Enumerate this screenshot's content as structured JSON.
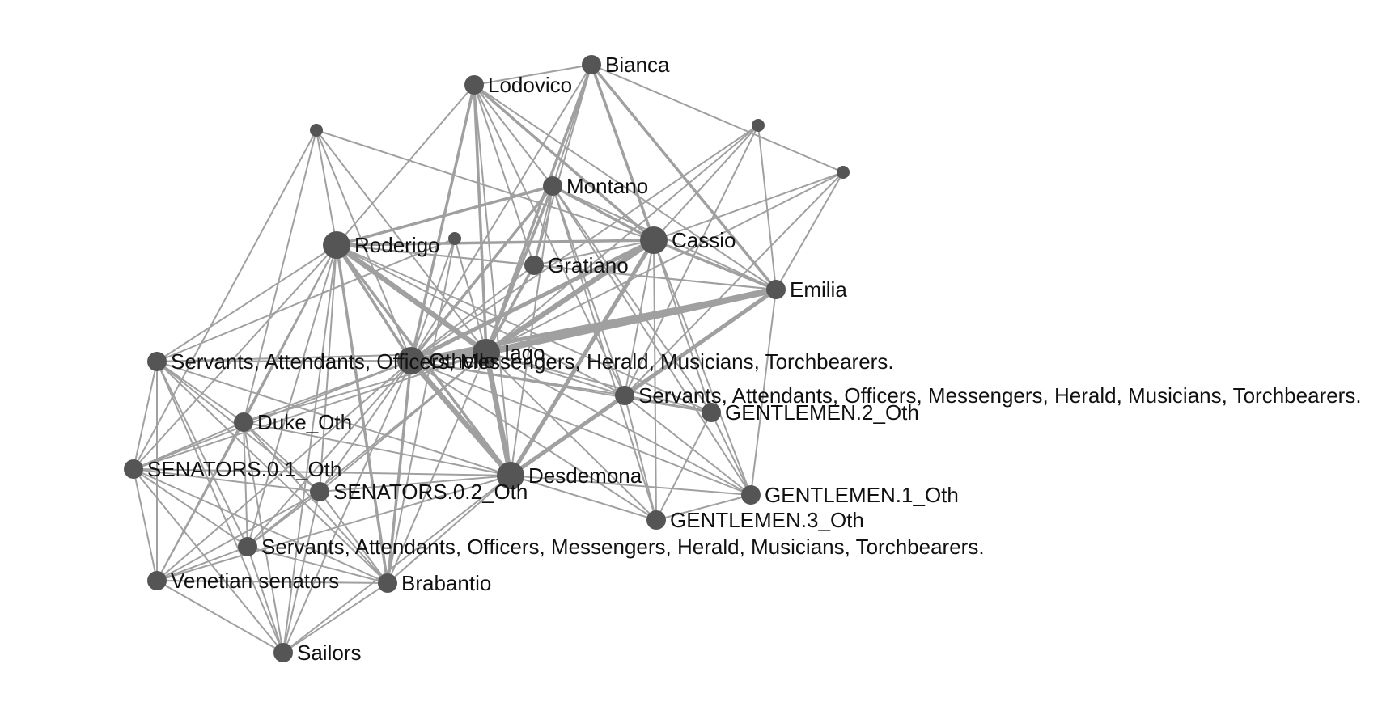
{
  "colors": {
    "node": "#555555",
    "edge": "#a0a0a0",
    "label": "#111111"
  },
  "nodes": [
    {
      "id": "bianca",
      "label": "Bianca",
      "degree": "minor"
    },
    {
      "id": "lodovico",
      "label": "Lodovico",
      "degree": "minor"
    },
    {
      "id": "unlabeled_1",
      "label": "",
      "degree": "tiny"
    },
    {
      "id": "unlabeled_2",
      "label": "",
      "degree": "tiny"
    },
    {
      "id": "unlabeled_3",
      "label": "",
      "degree": "tiny"
    },
    {
      "id": "unlabeled_4",
      "label": "",
      "degree": "tiny"
    },
    {
      "id": "montano",
      "label": "Montano",
      "degree": "minor"
    },
    {
      "id": "roderigo",
      "label": "Roderigo",
      "degree": "major"
    },
    {
      "id": "cassio",
      "label": "Cassio",
      "degree": "major"
    },
    {
      "id": "gratiano",
      "label": "Gratiano",
      "degree": "minor"
    },
    {
      "id": "emilia",
      "label": "Emilia",
      "degree": "minor"
    },
    {
      "id": "servants_a",
      "label": "Servants, Attendants, Officers, Messengers, Herald, Musicians, Torchbearers.",
      "degree": "minor"
    },
    {
      "id": "othello",
      "label": "Othello",
      "degree": "major"
    },
    {
      "id": "iago",
      "label": "Iago",
      "degree": "major"
    },
    {
      "id": "servants_b",
      "label": "Servants, Attendants, Officers, Messengers, Herald, Musicians, Torchbearers.",
      "degree": "minor"
    },
    {
      "id": "gentlemen2",
      "label": "GENTLEMEN.2_Oth",
      "degree": "minor"
    },
    {
      "id": "duke",
      "label": "Duke_Oth",
      "degree": "minor"
    },
    {
      "id": "senators01",
      "label": "SENATORS.0.1_Oth",
      "degree": "minor"
    },
    {
      "id": "desdemona",
      "label": "Desdemona",
      "degree": "major"
    },
    {
      "id": "senators02",
      "label": "SENATORS.0.2_Oth",
      "degree": "minor"
    },
    {
      "id": "gentlemen1",
      "label": "GENTLEMEN.1_Oth",
      "degree": "minor"
    },
    {
      "id": "gentlemen3",
      "label": "GENTLEMEN.3_Oth",
      "degree": "minor"
    },
    {
      "id": "servants_c",
      "label": "Servants, Attendants, Officers, Messengers, Herald, Musicians, Torchbearers.",
      "degree": "minor"
    },
    {
      "id": "venetian",
      "label": "Venetian senators",
      "degree": "minor"
    },
    {
      "id": "brabantio",
      "label": "Brabantio",
      "degree": "minor"
    },
    {
      "id": "sailors",
      "label": "Sailors",
      "degree": "minor"
    }
  ],
  "edges": [
    {
      "source": "othello",
      "target": "iago",
      "weight": 5
    },
    {
      "source": "othello",
      "target": "desdemona",
      "weight": 4
    },
    {
      "source": "othello",
      "target": "cassio",
      "weight": 3
    },
    {
      "source": "othello",
      "target": "roderigo",
      "weight": 2
    },
    {
      "source": "othello",
      "target": "emilia",
      "weight": 3
    },
    {
      "source": "othello",
      "target": "montano",
      "weight": 2
    },
    {
      "source": "othello",
      "target": "lodovico",
      "weight": 2
    },
    {
      "source": "othello",
      "target": "bianca",
      "weight": 1
    },
    {
      "source": "othello",
      "target": "gratiano",
      "weight": 1
    },
    {
      "source": "othello",
      "target": "brabantio",
      "weight": 2
    },
    {
      "source": "othello",
      "target": "duke",
      "weight": 1
    },
    {
      "source": "othello",
      "target": "servants_a",
      "weight": 1
    },
    {
      "source": "othello",
      "target": "servants_b",
      "weight": 1
    },
    {
      "source": "othello",
      "target": "servants_c",
      "weight": 1
    },
    {
      "source": "othello",
      "target": "senators01",
      "weight": 1
    },
    {
      "source": "othello",
      "target": "senators02",
      "weight": 1
    },
    {
      "source": "othello",
      "target": "venetian",
      "weight": 1
    },
    {
      "source": "othello",
      "target": "sailors",
      "weight": 1
    },
    {
      "source": "othello",
      "target": "gentlemen1",
      "weight": 1
    },
    {
      "source": "othello",
      "target": "gentlemen2",
      "weight": 1
    },
    {
      "source": "othello",
      "target": "gentlemen3",
      "weight": 1
    },
    {
      "source": "othello",
      "target": "unlabeled_1",
      "weight": 1
    },
    {
      "source": "othello",
      "target": "unlabeled_2",
      "weight": 1
    },
    {
      "source": "othello",
      "target": "unlabeled_3",
      "weight": 1
    },
    {
      "source": "iago",
      "target": "roderigo",
      "weight": 4
    },
    {
      "source": "iago",
      "target": "cassio",
      "weight": 4
    },
    {
      "source": "iago",
      "target": "emilia",
      "weight": 5
    },
    {
      "source": "iago",
      "target": "desdemona",
      "weight": 4
    },
    {
      "source": "iago",
      "target": "montano",
      "weight": 2
    },
    {
      "source": "iago",
      "target": "lodovico",
      "weight": 2
    },
    {
      "source": "iago",
      "target": "bianca",
      "weight": 2
    },
    {
      "source": "iago",
      "target": "gratiano",
      "weight": 2
    },
    {
      "source": "iago",
      "target": "brabantio",
      "weight": 1
    },
    {
      "source": "iago",
      "target": "duke",
      "weight": 1
    },
    {
      "source": "iago",
      "target": "servants_a",
      "weight": 1
    },
    {
      "source": "iago",
      "target": "servants_b",
      "weight": 1
    },
    {
      "source": "iago",
      "target": "servants_c",
      "weight": 1
    },
    {
      "source": "iago",
      "target": "senators01",
      "weight": 1
    },
    {
      "source": "iago",
      "target": "senators02",
      "weight": 1
    },
    {
      "source": "iago",
      "target": "gentlemen1",
      "weight": 1
    },
    {
      "source": "iago",
      "target": "gentlemen2",
      "weight": 1
    },
    {
      "source": "iago",
      "target": "gentlemen3",
      "weight": 1
    },
    {
      "source": "iago",
      "target": "unlabeled_1",
      "weight": 1
    },
    {
      "source": "iago",
      "target": "unlabeled_3",
      "weight": 1
    },
    {
      "source": "iago",
      "target": "unlabeled_4",
      "weight": 1
    },
    {
      "source": "iago",
      "target": "unlabeled_2",
      "weight": 1
    },
    {
      "source": "desdemona",
      "target": "cassio",
      "weight": 3
    },
    {
      "source": "desdemona",
      "target": "emilia",
      "weight": 3
    },
    {
      "source": "desdemona",
      "target": "roderigo",
      "weight": 2
    },
    {
      "source": "desdemona",
      "target": "montano",
      "weight": 1
    },
    {
      "source": "desdemona",
      "target": "lodovico",
      "weight": 1
    },
    {
      "source": "desdemona",
      "target": "brabantio",
      "weight": 1
    },
    {
      "source": "desdemona",
      "target": "duke",
      "weight": 1
    },
    {
      "source": "desdemona",
      "target": "servants_a",
      "weight": 1
    },
    {
      "source": "desdemona",
      "target": "servants_b",
      "weight": 1
    },
    {
      "source": "desdemona",
      "target": "senators01",
      "weight": 1
    },
    {
      "source": "desdemona",
      "target": "senators02",
      "weight": 1
    },
    {
      "source": "desdemona",
      "target": "venetian",
      "weight": 1
    },
    {
      "source": "desdemona",
      "target": "gentlemen1",
      "weight": 1
    },
    {
      "source": "desdemona",
      "target": "gentlemen3",
      "weight": 1
    },
    {
      "source": "desdemona",
      "target": "sailors",
      "weight": 1
    },
    {
      "source": "cassio",
      "target": "roderigo",
      "weight": 2
    },
    {
      "source": "cassio",
      "target": "emilia",
      "weight": 2
    },
    {
      "source": "cassio",
      "target": "montano",
      "weight": 2
    },
    {
      "source": "cassio",
      "target": "bianca",
      "weight": 2
    },
    {
      "source": "cassio",
      "target": "lodovico",
      "weight": 2
    },
    {
      "source": "cassio",
      "target": "gratiano",
      "weight": 1
    },
    {
      "source": "cassio",
      "target": "servants_b",
      "weight": 1
    },
    {
      "source": "cassio",
      "target": "gentlemen1",
      "weight": 1
    },
    {
      "source": "cassio",
      "target": "gentlemen2",
      "weight": 1
    },
    {
      "source": "cassio",
      "target": "gentlemen3",
      "weight": 1
    },
    {
      "source": "cassio",
      "target": "unlabeled_3",
      "weight": 1
    },
    {
      "source": "cassio",
      "target": "unlabeled_4",
      "weight": 1
    },
    {
      "source": "cassio",
      "target": "unlabeled_1",
      "weight": 1
    },
    {
      "source": "roderigo",
      "target": "montano",
      "weight": 2
    },
    {
      "source": "roderigo",
      "target": "lodovico",
      "weight": 1
    },
    {
      "source": "roderigo",
      "target": "gratiano",
      "weight": 1
    },
    {
      "source": "roderigo",
      "target": "brabantio",
      "weight": 2
    },
    {
      "source": "roderigo",
      "target": "emilia",
      "weight": 1
    },
    {
      "source": "roderigo",
      "target": "servants_a",
      "weight": 1
    },
    {
      "source": "roderigo",
      "target": "duke",
      "weight": 1
    },
    {
      "source": "roderigo",
      "target": "senators01",
      "weight": 1
    },
    {
      "source": "roderigo",
      "target": "senators02",
      "weight": 1
    },
    {
      "source": "roderigo",
      "target": "venetian",
      "weight": 1
    },
    {
      "source": "roderigo",
      "target": "servants_c",
      "weight": 1
    },
    {
      "source": "roderigo",
      "target": "sailors",
      "weight": 1
    },
    {
      "source": "roderigo",
      "target": "unlabeled_1",
      "weight": 1
    },
    {
      "source": "roderigo",
      "target": "gentlemen2",
      "weight": 1
    },
    {
      "source": "roderigo",
      "target": "servants_b",
      "weight": 1
    },
    {
      "source": "emilia",
      "target": "lodovico",
      "weight": 1
    },
    {
      "source": "emilia",
      "target": "bianca",
      "weight": 2
    },
    {
      "source": "emilia",
      "target": "montano",
      "weight": 1
    },
    {
      "source": "emilia",
      "target": "gratiano",
      "weight": 1
    },
    {
      "source": "emilia",
      "target": "unlabeled_3",
      "weight": 1
    },
    {
      "source": "emilia",
      "target": "unlabeled_4",
      "weight": 1
    },
    {
      "source": "emilia",
      "target": "gentlemen1",
      "weight": 1
    },
    {
      "source": "emilia",
      "target": "servants_b",
      "weight": 1
    },
    {
      "source": "montano",
      "target": "lodovico",
      "weight": 1
    },
    {
      "source": "montano",
      "target": "bianca",
      "weight": 1
    },
    {
      "source": "montano",
      "target": "gratiano",
      "weight": 1
    },
    {
      "source": "montano",
      "target": "gentlemen1",
      "weight": 1
    },
    {
      "source": "montano",
      "target": "gentlemen2",
      "weight": 1
    },
    {
      "source": "montano",
      "target": "gentlemen3",
      "weight": 1
    },
    {
      "source": "montano",
      "target": "servants_b",
      "weight": 1
    },
    {
      "source": "lodovico",
      "target": "bianca",
      "weight": 1
    },
    {
      "source": "lodovico",
      "target": "gratiano",
      "weight": 1
    },
    {
      "source": "lodovico",
      "target": "servants_b",
      "weight": 1
    },
    {
      "source": "bianca",
      "target": "unlabeled_4",
      "weight": 1
    },
    {
      "source": "bianca",
      "target": "gratiano",
      "weight": 1
    },
    {
      "source": "unlabeled_2",
      "target": "brabantio",
      "weight": 1
    },
    {
      "source": "unlabeled_2",
      "target": "servants_a",
      "weight": 1
    },
    {
      "source": "brabantio",
      "target": "duke",
      "weight": 1
    },
    {
      "source": "brabantio",
      "target": "senators01",
      "weight": 1
    },
    {
      "source": "brabantio",
      "target": "senators02",
      "weight": 1
    },
    {
      "source": "brabantio",
      "target": "servants_c",
      "weight": 1
    },
    {
      "source": "brabantio",
      "target": "venetian",
      "weight": 1
    },
    {
      "source": "brabantio",
      "target": "sailors",
      "weight": 1
    },
    {
      "source": "brabantio",
      "target": "servants_a",
      "weight": 1
    },
    {
      "source": "duke",
      "target": "senators01",
      "weight": 1
    },
    {
      "source": "duke",
      "target": "senators02",
      "weight": 1
    },
    {
      "source": "duke",
      "target": "servants_a",
      "weight": 1
    },
    {
      "source": "duke",
      "target": "servants_c",
      "weight": 1
    },
    {
      "source": "duke",
      "target": "venetian",
      "weight": 1
    },
    {
      "source": "duke",
      "target": "sailors",
      "weight": 1
    },
    {
      "source": "senators01",
      "target": "senators02",
      "weight": 1
    },
    {
      "source": "senators01",
      "target": "servants_a",
      "weight": 1
    },
    {
      "source": "senators01",
      "target": "servants_c",
      "weight": 1
    },
    {
      "source": "senators01",
      "target": "venetian",
      "weight": 1
    },
    {
      "source": "senators01",
      "target": "sailors",
      "weight": 1
    },
    {
      "source": "senators02",
      "target": "servants_a",
      "weight": 1
    },
    {
      "source": "senators02",
      "target": "servants_c",
      "weight": 1
    },
    {
      "source": "senators02",
      "target": "venetian",
      "weight": 1
    },
    {
      "source": "senators02",
      "target": "sailors",
      "weight": 1
    },
    {
      "source": "servants_a",
      "target": "venetian",
      "weight": 1
    },
    {
      "source": "servants_a",
      "target": "sailors",
      "weight": 1
    },
    {
      "source": "servants_a",
      "target": "servants_c",
      "weight": 1
    },
    {
      "source": "servants_c",
      "target": "venetian",
      "weight": 1
    },
    {
      "source": "servants_c",
      "target": "sailors",
      "weight": 1
    },
    {
      "source": "venetian",
      "target": "sailors",
      "weight": 1
    },
    {
      "source": "servants_b",
      "target": "gentlemen1",
      "weight": 1
    },
    {
      "source": "servants_b",
      "target": "gentlemen2",
      "weight": 1
    },
    {
      "source": "servants_b",
      "target": "gentlemen3",
      "weight": 1
    },
    {
      "source": "servants_b",
      "target": "unlabeled_4",
      "weight": 1
    },
    {
      "source": "servants_b",
      "target": "unlabeled_3",
      "weight": 1
    },
    {
      "source": "gentlemen1",
      "target": "gentlemen2",
      "weight": 1
    },
    {
      "source": "gentlemen1",
      "target": "gentlemen3",
      "weight": 1
    },
    {
      "source": "gentlemen2",
      "target": "gentlemen3",
      "weight": 1
    },
    {
      "source": "unlabeled_1",
      "target": "duke",
      "weight": 1
    },
    {
      "source": "unlabeled_1",
      "target": "senators01",
      "weight": 1
    }
  ]
}
